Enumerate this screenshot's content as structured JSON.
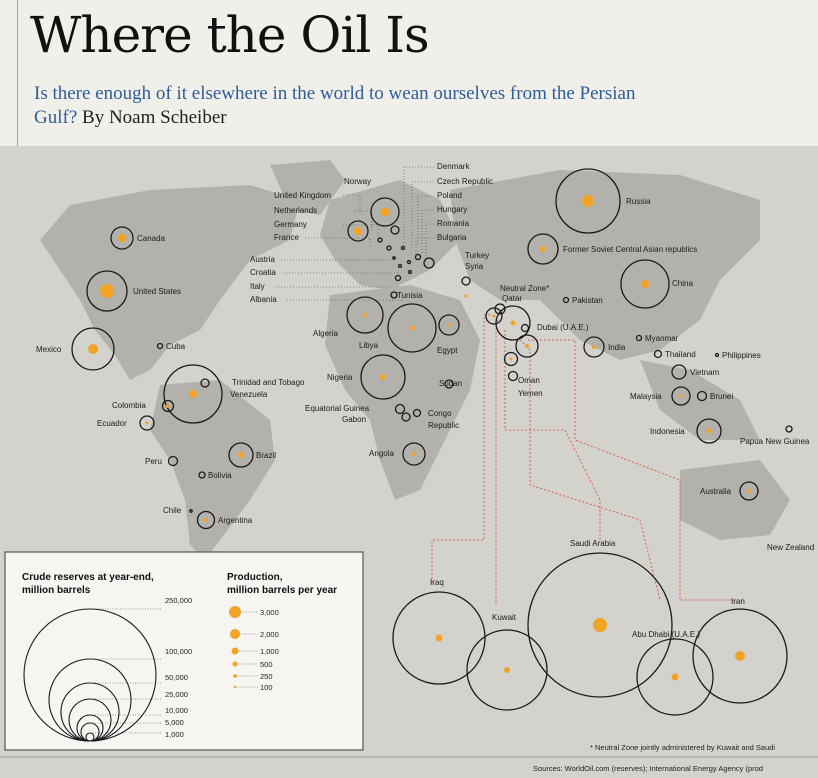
{
  "header": {
    "title": "Where the Oil Is",
    "subtitle_main": "Is there enough of it elsewhere in the world to wean ourselves from the Persian Gulf?",
    "byline": "By Noam Scheiber"
  },
  "colors": {
    "accent_blue": "#2d5d98",
    "production_dot": "#f2a324",
    "ocean": "#d4d2cd",
    "land": "#b3b1ac",
    "leader_line": "#d9472b"
  },
  "map": {
    "countries": {
      "canada": "Canada",
      "united_states": "United States",
      "mexico": "Mexico",
      "cuba": "Cuba",
      "trinidad": "Trinidad and Tobago",
      "venezuela": "Venezuela",
      "colombia": "Colombia",
      "ecuador": "Ecuador",
      "peru": "Peru",
      "bolivia": "Bolivia",
      "brazil": "Brazil",
      "chile": "Chile",
      "argentina": "Argentina",
      "norway": "Norway",
      "united_kingdom": "United Kingdom",
      "netherlands": "Netherlands",
      "germany": "Germany",
      "france": "France",
      "austria": "Austria",
      "croatia": "Croatia",
      "italy": "Italy",
      "albania": "Albania",
      "denmark": "Denmark",
      "czech": "Czech Republic",
      "poland": "Poland",
      "hungary": "Hungary",
      "romania": "Romania",
      "bulgaria": "Bulgaria",
      "turkey": "Turkey",
      "syria": "Syria",
      "tunisia": "Tunisia",
      "algeria": "Algeria",
      "libya": "Libya",
      "egypt": "Egypt",
      "nigeria": "Nigeria",
      "sudan": "Sudan",
      "eq_guinea": "Equatorial Guinea",
      "gabon": "Gabon",
      "congo": "Congo",
      "republic": "Republic",
      "angola": "Angola",
      "neutral_zone": "Neutral Zone*",
      "qatar": "Qatar",
      "dubai": "Dubai (U.A.E.)",
      "oman": "Oman",
      "yemen": "Yemen",
      "pakistan": "Pakistan",
      "russia": "Russia",
      "fscar": "Former Soviet Central Asian republics",
      "china": "China",
      "india": "India",
      "myanmar": "Myanmar",
      "thailand": "Thailand",
      "philippines": "Philippines",
      "vietnam": "Vietnam",
      "malaysia": "Malaysia",
      "brunei": "Brunei",
      "indonesia": "Indonesia",
      "png": "Papua New Guinea",
      "australia": "Australia",
      "new_zealand": "New Zealand"
    },
    "inset": {
      "saudi_arabia": "Saudi Arabia",
      "iraq": "Iraq",
      "kuwait": "Kuwait",
      "abu_dhabi": "Abu Dhabi (U.A.E.)",
      "iran": "Iran"
    }
  },
  "legend": {
    "reserves_title_1": "Crude reserves at year-end,",
    "reserves_title_2": "million barrels",
    "reserves_values": [
      "250,000",
      "100,000",
      "50,000",
      "25,000",
      "10,000",
      "5,000",
      "1,000"
    ],
    "production_title_1": "Production,",
    "production_title_2": "million barrels per year",
    "production_values": [
      "3,000",
      "2,000",
      "1,000",
      "500",
      "250",
      "100"
    ]
  },
  "footnotes": {
    "neutral_zone_note": "* Neutral Zone jointly administered by Kuwait and Saudi",
    "sources": "Sources: WorldOil.com (reserves); International Energy Agency (prod"
  }
}
